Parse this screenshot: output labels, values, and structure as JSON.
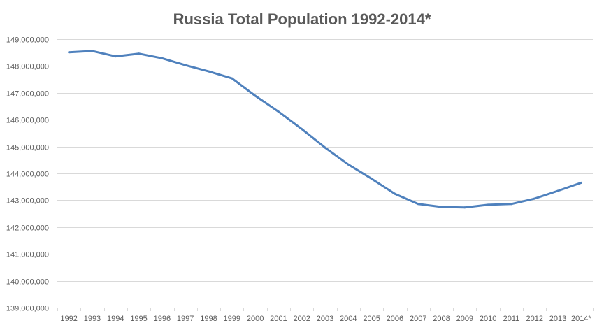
{
  "chart_data": {
    "type": "line",
    "title": "Russia Total Population 1992-2014*",
    "xlabel": "",
    "ylabel": "",
    "ylim": [
      139000000,
      149000000
    ],
    "y_tick_values": [
      139000000,
      140000000,
      141000000,
      142000000,
      143000000,
      144000000,
      145000000,
      146000000,
      147000000,
      148000000,
      149000000
    ],
    "y_tick_labels": [
      "139,000,000",
      "140,000,000",
      "141,000,000",
      "142,000,000",
      "143,000,000",
      "144,000,000",
      "145,000,000",
      "146,000,000",
      "147,000,000",
      "148,000,000",
      "149,000,000"
    ],
    "categories": [
      "1992",
      "1993",
      "1994",
      "1995",
      "1996",
      "1997",
      "1998",
      "1999",
      "2000",
      "2001",
      "2002",
      "2003",
      "2004",
      "2005",
      "2006",
      "2007",
      "2008",
      "2009",
      "2010",
      "2011",
      "2012",
      "2013",
      "2014*"
    ],
    "series": [
      {
        "values": [
          148510000,
          148560000,
          148360000,
          148460000,
          148290000,
          148030000,
          147800000,
          147540000,
          146890000,
          146300000,
          145650000,
          144960000,
          144330000,
          143800000,
          143240000,
          142860000,
          142750000,
          142730000,
          142830000,
          142860000,
          143060000,
          143350000,
          143650000
        ],
        "color": "#4f81bd"
      }
    ],
    "grid": true,
    "legend": "none"
  }
}
